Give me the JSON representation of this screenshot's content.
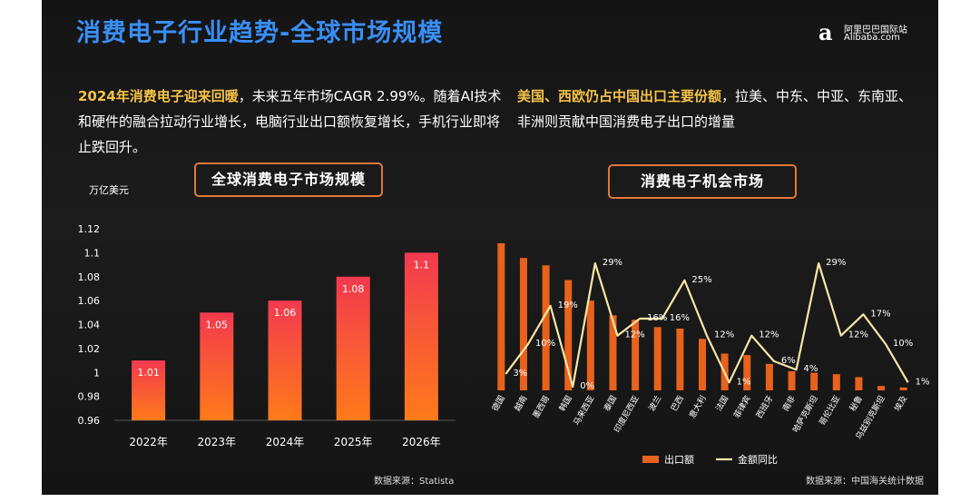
{
  "title": "消费电子行业趋势-全球市场规模",
  "logo": {
    "cn": "阿里巴巴国际站",
    "en": "Alibaba.com"
  },
  "left": {
    "para_highlight": "2024年消费电子迎来回暖",
    "para_rest": "，未来五年市场CAGR 2.99%。随着AI技术和硬件的融合拉动行业增长，电脑行业出口额恢复增长，手机行业即将止跌回升。",
    "chip": "全球消费电子市场规模",
    "unit": "万亿美元",
    "source": "数据来源：Statista"
  },
  "right": {
    "para_highlight": "美国、西欧仍占中国出口主要份额",
    "para_rest": "，拉美、中东、中亚、东南亚、非洲则贡献中国消费电子出口的增量",
    "chip": "消费电子机会市场",
    "source": "数据来源：中国海关统计数据"
  },
  "colors": {
    "title": "#3a8ef6",
    "bar_left_top": "#f23a4f",
    "bar_left_bottom": "#ff7a1a",
    "bar_right": "#e8621c",
    "line": "#f7e6a6",
    "highlight": "#f6c347"
  },
  "chart_data": [
    {
      "type": "bar",
      "categories": [
        "2022年",
        "2023年",
        "2024年",
        "2025年",
        "2026年"
      ],
      "values": [
        1.01,
        1.05,
        1.06,
        1.08,
        1.1
      ],
      "data_labels": [
        "1.01",
        "1.05",
        "1.06",
        "1.08",
        "1.1"
      ],
      "ylim": [
        0.96,
        1.12
      ],
      "yticks": [
        "0.96",
        "0.98",
        "1",
        "1.02",
        "1.04",
        "1.06",
        "1.08",
        "1.1",
        "1.12"
      ],
      "ylabel": "万亿美元",
      "grid": false,
      "legend": "none"
    },
    {
      "type": "bar+line",
      "categories": [
        "德国",
        "越南",
        "墨西哥",
        "韩国",
        "马来西亚",
        "泰国",
        "印度尼西亚",
        "波兰",
        "巴西",
        "意大利",
        "法国",
        "菲律宾",
        "西班牙",
        "南非",
        "哈萨克斯坦",
        "哥伦比亚",
        "秘鲁",
        "乌兹别克斯坦",
        "埃及"
      ],
      "series": [
        {
          "name": "出口额",
          "type": "bar",
          "values": [
            100,
            90,
            85,
            75,
            61,
            51,
            48,
            43,
            42,
            35,
            25,
            24,
            18,
            13,
            12,
            11,
            9,
            3,
            2
          ]
        },
        {
          "name": "金额同比",
          "type": "line",
          "values": [
            3,
            10,
            19,
            0,
            29,
            12,
            16,
            16,
            25,
            12,
            1,
            12,
            6,
            4,
            29,
            12,
            17,
            10,
            1
          ],
          "labels": [
            "3%",
            "10%",
            "19%",
            "0%",
            "29%",
            "12%",
            "16%",
            "16%",
            "25%",
            "12%",
            "1%",
            "12%",
            "6%",
            "4%",
            "29%",
            "12%",
            "17%",
            "10%",
            "1%"
          ]
        }
      ],
      "legend": "bottom",
      "grid": false
    }
  ]
}
